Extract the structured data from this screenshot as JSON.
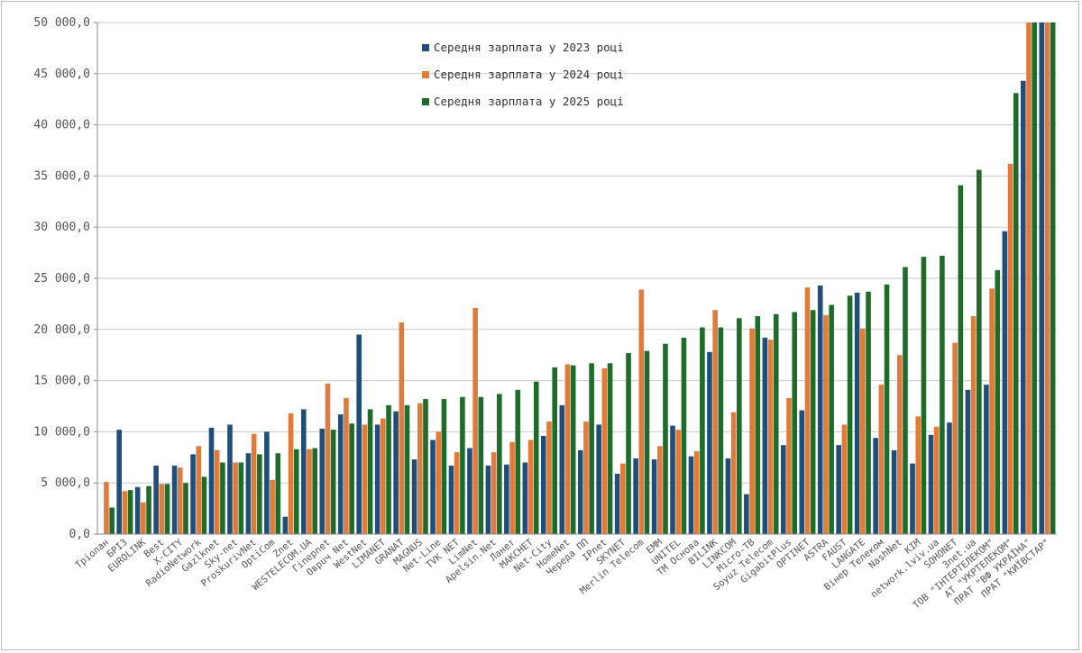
{
  "chart_data": {
    "type": "bar",
    "title": "",
    "xlabel": "",
    "ylabel": "",
    "ylim": [
      0,
      50000
    ],
    "yticks": [
      0,
      5000,
      10000,
      15000,
      20000,
      25000,
      30000,
      35000,
      40000,
      45000,
      50000
    ],
    "ytick_labels": [
      "0,0",
      "5 000,0",
      "10 000,0",
      "15 000,0",
      "20 000,0",
      "25 000,0",
      "30 000,0",
      "35 000,0",
      "40 000,0",
      "45 000,0",
      "50 000,0"
    ],
    "grid": true,
    "legend_position": "top-center",
    "categories": [
      "Тріолан",
      "БРІЗ",
      "EUROLINK",
      "Best",
      "X-CITY",
      "RadioNetwork",
      "Gazlknet",
      "Sky-net",
      "ProskurivNet",
      "OptiCom",
      "Znet",
      "WESTELECOM.UA",
      "Гіперnet",
      "Оврuч Net",
      "WestNet",
      "LIMANET",
      "GRANAT",
      "MAGNUS",
      "Net-Line",
      "TVK NET",
      "LimNet",
      "Apelsin.Net",
      "Ланет",
      "МАКСНЕТ",
      "Net-City",
      "HomeNet",
      "Череда ПП",
      "IPnet",
      "SKYNET",
      "Merlin Telecom",
      "EMM",
      "UNITEL",
      "ТМ Основа",
      "BILINK",
      "LINKCOM",
      "Micro-TB",
      "Soyuz Telecom",
      "GigabitPlus",
      "OPTINET",
      "ASTRA",
      "FAUST",
      "LANGATE",
      "Вінер Телеком",
      "NashNet",
      "KIM",
      "network.lviv.ua",
      "SOHONET",
      "3net.ua",
      "ТОВ \"ІНТЕРТЕЛЕКОМ\"",
      "АТ \"УКРТЕЛЕКОМ\"",
      "ПРАТ \"ВФ УКРАЇНА\"",
      "ПРАТ \"КИЇВСТАР\""
    ],
    "series": [
      {
        "name": "Середня зарплата у  2023 році",
        "color": "#1f4e79",
        "values": [
          null,
          10200,
          4600,
          6700,
          6700,
          7800,
          10400,
          10700,
          7900,
          10000,
          1700,
          12200,
          10300,
          11700,
          19500,
          10700,
          12000,
          7300,
          9200,
          6700,
          8400,
          6700,
          6800,
          7000,
          9600,
          12600,
          8200,
          10700,
          5900,
          7400,
          7300,
          10600,
          7600,
          17800,
          7400,
          3900,
          19200,
          8700,
          12100,
          24300,
          8700,
          23600,
          9400,
          8200,
          6900,
          9700,
          10900,
          14100,
          14600,
          29600,
          44300,
          50000
        ]
      },
      {
        "name": "Середня зарплата у  2024 році",
        "color": "#e07b39",
        "values": [
          5100,
          4200,
          3100,
          4900,
          6500,
          8600,
          8200,
          7000,
          9800,
          5300,
          11800,
          8300,
          14700,
          13300,
          10700,
          11300,
          20700,
          12800,
          10000,
          8000,
          22100,
          8000,
          9000,
          9200,
          11000,
          16600,
          11000,
          16200,
          6900,
          23900,
          8600,
          10200,
          8100,
          21900,
          11900,
          20100,
          19000,
          13300,
          24100,
          21400,
          10700,
          20100,
          14600,
          17500,
          11500,
          10500,
          18700,
          21300,
          24000,
          36200,
          50000,
          50000
        ]
      },
      {
        "name": "Середня зарплата у  2025 році",
        "color": "#1e6b2a",
        "values": [
          2600,
          4300,
          4700,
          4900,
          5000,
          5600,
          7000,
          7000,
          7800,
          7900,
          8300,
          8400,
          10200,
          10800,
          12200,
          12600,
          12600,
          13200,
          13200,
          13400,
          13400,
          13700,
          14100,
          14900,
          16300,
          16500,
          16700,
          16700,
          17700,
          17900,
          18600,
          19200,
          20200,
          20200,
          21100,
          21300,
          21500,
          21700,
          21900,
          22400,
          23300,
          23700,
          24400,
          26100,
          27100,
          27200,
          34100,
          35600,
          25800,
          43100,
          50000,
          50000
        ]
      }
    ]
  }
}
